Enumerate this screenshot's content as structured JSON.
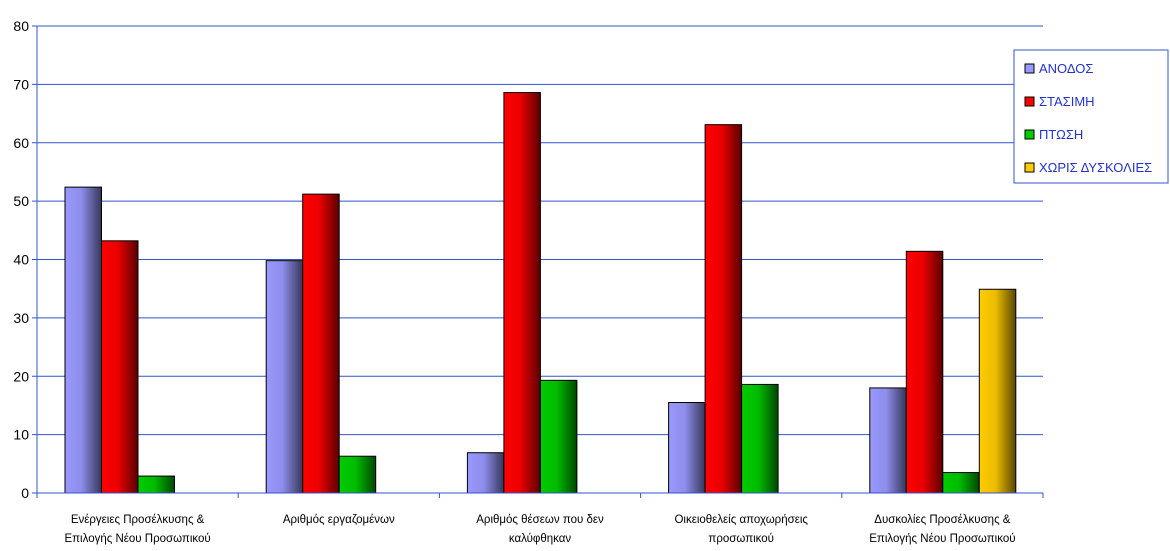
{
  "chart_data": {
    "type": "bar",
    "categories": [
      [
        "Ενέργειες Προσέλκυσης &",
        "Επιλογής Νέου Προσωπικού"
      ],
      [
        "Αριθμός εργαζομένων"
      ],
      [
        "Αριθμός θέσεων που δεν",
        "καλύφθηκαν"
      ],
      [
        "Οικειοθελείς αποχωρήσεις",
        "προσωπικού"
      ],
      [
        "Δυσκολίες Προσέλκυσης &",
        "Επιλογής Νέου Προσωπικού"
      ]
    ],
    "series": [
      {
        "name": "ΑΝΟΔΟΣ",
        "color": "#9999ff",
        "values": [
          52.4,
          39.8,
          6.9,
          15.5,
          18.0
        ]
      },
      {
        "name": "ΣΤΑΣΙΜΗ",
        "color": "#ff0000",
        "values": [
          43.2,
          51.2,
          68.6,
          63.1,
          41.4
        ]
      },
      {
        "name": "ΠΤΩΣΗ",
        "color": "#00cc00",
        "values": [
          2.9,
          6.3,
          19.3,
          18.6,
          3.5
        ]
      },
      {
        "name": "ΧΩΡΙΣ ΔΥΣΚΟΛΙΕΣ",
        "color": "#ffcc00",
        "values": [
          null,
          null,
          null,
          null,
          34.9
        ]
      }
    ],
    "ylim": [
      0,
      80
    ],
    "yticks": [
      "0",
      "10",
      "20",
      "30",
      "40",
      "50",
      "60",
      "70",
      "80"
    ],
    "grid": true,
    "legend": "top-right"
  }
}
